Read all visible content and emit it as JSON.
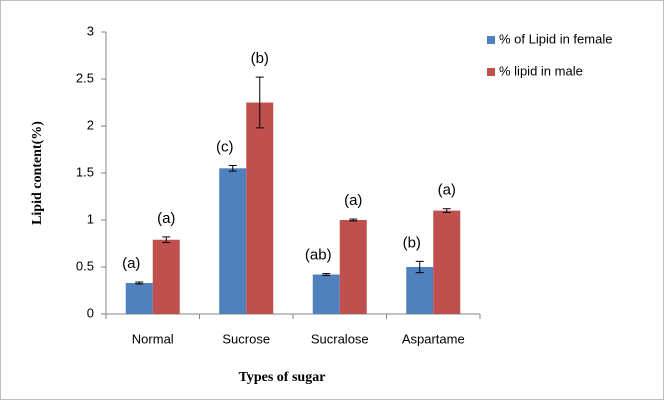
{
  "chart_data": {
    "type": "bar",
    "x_label": "Types of sugar",
    "y_label": "Lipid content(%)",
    "categories": [
      "Normal",
      "Sucrose",
      "Sucralose",
      "Aspartame"
    ],
    "series": [
      {
        "name": "% of Lipid in female",
        "color": "#4f81bd",
        "values": [
          0.33,
          1.55,
          0.42,
          0.5
        ],
        "errors": [
          0.01,
          0.03,
          0.01,
          0.06
        ],
        "letters": [
          "(a)",
          "(c)",
          "(ab)",
          "(b)"
        ]
      },
      {
        "name": "% lipid in male",
        "color": "#c0504d",
        "values": [
          0.79,
          2.25,
          1.0,
          1.1
        ],
        "errors": [
          0.03,
          0.27,
          0.01,
          0.02
        ],
        "letters": [
          "(a)",
          "(b)",
          "(a)",
          "(a)"
        ]
      }
    ],
    "ylim": [
      0,
      3
    ],
    "yticks": [
      0,
      0.5,
      1,
      1.5,
      2,
      2.5,
      3
    ],
    "grid": false,
    "legend": "right"
  }
}
